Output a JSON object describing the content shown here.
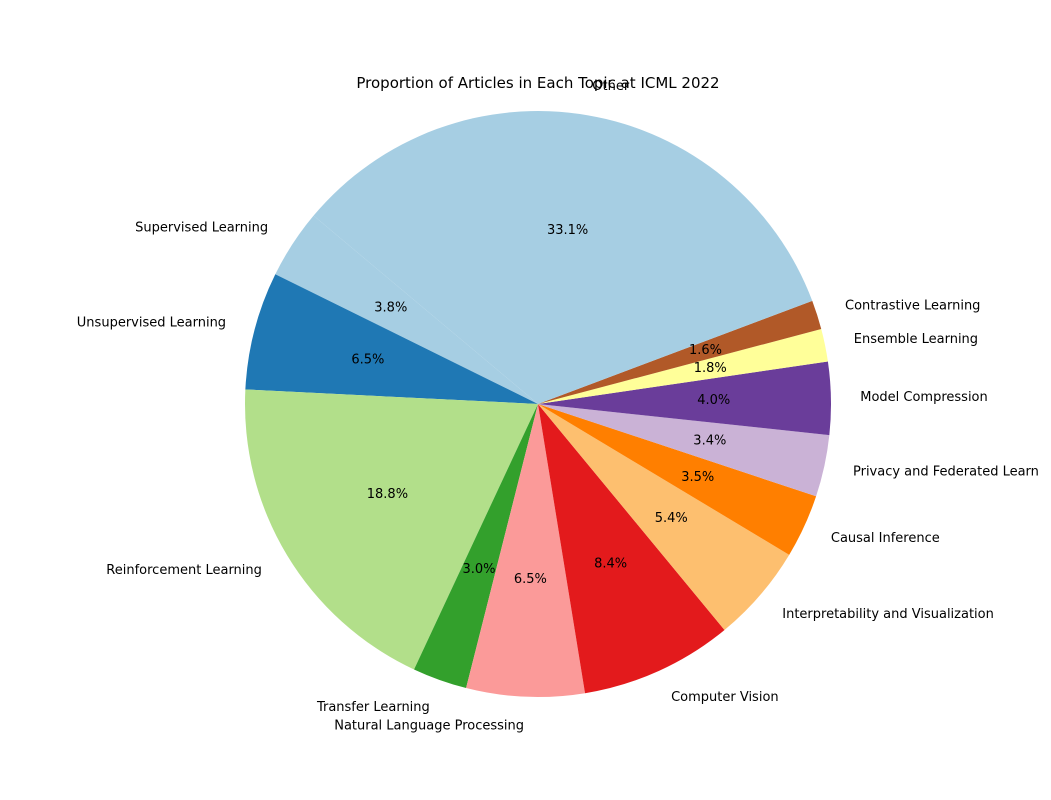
{
  "chart_data": {
    "type": "pie",
    "title": "Proportion of Articles in Each Topic at ICML 2022",
    "categories": [
      "Supervised Learning",
      "Unsupervised Learning",
      "Reinforcement Learning",
      "Transfer Learning",
      "Natural Language Processing",
      "Computer Vision",
      "Interpretability and Visualization",
      "Causal Inference",
      "Privacy and Federated Learn",
      "Model Compression",
      "Ensemble Learning",
      "Contrastive Learning",
      "Other"
    ],
    "values": [
      3.8,
      6.5,
      18.8,
      3.0,
      6.5,
      8.4,
      5.4,
      3.5,
      3.4,
      4.0,
      1.8,
      1.6,
      33.1
    ],
    "value_labels": [
      "3.8%",
      "6.5%",
      "18.8%",
      "3.0%",
      "6.5%",
      "8.4%",
      "5.4%",
      "3.5%",
      "3.4%",
      "4.0%",
      "1.8%",
      "1.6%",
      "33.1%"
    ],
    "colors": [
      "#a6cee3",
      "#1f78b4",
      "#b2df8a",
      "#33a02c",
      "#fb9a99",
      "#e31a1c",
      "#fdbf6f",
      "#ff7f00",
      "#cab2d6",
      "#6a3d9a",
      "#ffff99",
      "#b15928",
      "#a6cee3"
    ],
    "start_angle_deg": 140,
    "direction": "counterclockwise"
  }
}
